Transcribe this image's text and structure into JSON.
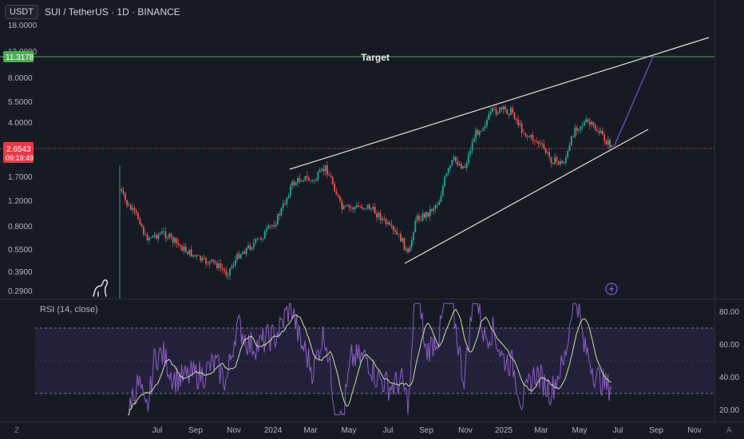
{
  "header": {
    "currency_button": "USDT",
    "title": "SUI / TetherUS · 1D · BINANCE"
  },
  "price_axis": {
    "ticks": [
      "18.0000",
      "12.0000",
      "8.0000",
      "5.5000",
      "4.0000",
      "2.6543",
      "1.7000",
      "1.2000",
      "0.8000",
      "0.5500",
      "0.3900",
      "0.2900"
    ],
    "target_price": "11.3178",
    "current_price": "2.6543",
    "countdown": "09:19:49"
  },
  "annotations": {
    "target_label": "Target"
  },
  "rsi": {
    "label": "RSI (14, close)",
    "ticks": [
      "80.00",
      "60.00",
      "40.00",
      "20.00"
    ]
  },
  "time_axis": {
    "labels": [
      "Jul",
      "Sep",
      "Nov",
      "2024",
      "Mar",
      "May",
      "Jul",
      "Sep",
      "Nov",
      "2025",
      "Mar",
      "May",
      "Jul",
      "Sep",
      "Nov"
    ]
  },
  "corner": {
    "left": "Z",
    "right": "A"
  },
  "colors": {
    "background": "#161a25",
    "up": "#26a69a",
    "down": "#ef5350",
    "rsi_line": "#7e57c2",
    "rsi_ma": "#c5e1a5",
    "target_line": "#4caf50",
    "trendline": "#e0e0e0",
    "projection": "#7e57c2"
  },
  "icons": {
    "logo": "dino-icon",
    "alert": "lightning-icon"
  }
}
